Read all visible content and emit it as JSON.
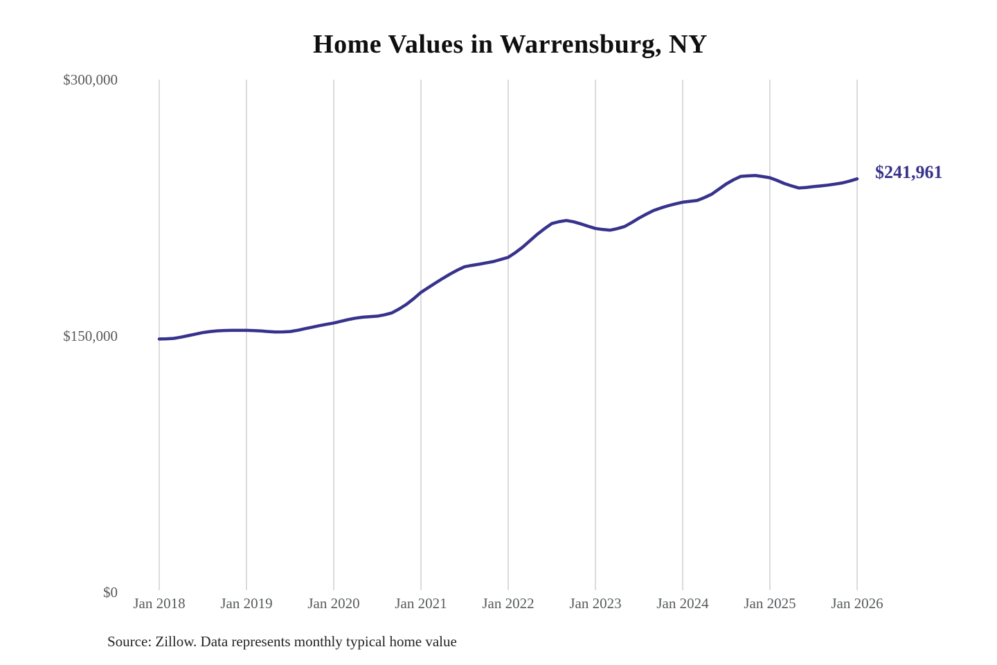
{
  "page": {
    "background": "#ffffff"
  },
  "chart": {
    "title": "Home Values in Warrensburg, NY",
    "end_label": "$241,961",
    "source": "Source: Zillow. Data represents monthly typical home value"
  },
  "chart_data": {
    "type": "line",
    "title": "Home Values in Warrensburg, NY",
    "xlabel": "",
    "ylabel": "",
    "ylim": [
      0,
      300000
    ],
    "grid": "vertical-only",
    "x_frequency": "monthly",
    "x_start": "Jan 2018",
    "x_end": "Jan 2026",
    "x_tick_labels": [
      "Jan 2018",
      "Jan 2019",
      "Jan 2020",
      "Jan 2021",
      "Jan 2022",
      "Jan 2023",
      "Jan 2024",
      "Jan 2025",
      "Jan 2026"
    ],
    "y_ticks": [
      {
        "label": "$0",
        "value": 0
      },
      {
        "label": "$150,000",
        "value": 150000
      },
      {
        "label": "$300,000",
        "value": 300000
      }
    ],
    "final_value": 241961,
    "end_value_label": "$241,961",
    "colors": {
      "line": "#37328c",
      "gridline": "#cfcfcf",
      "axis_text": "#56595b",
      "title_text": "#0f0f0f",
      "source_text": "#222222"
    },
    "series": [
      {
        "name": "Monthly typical home value",
        "color": "#37328c",
        "values": [
          148200,
          148350,
          148600,
          149300,
          150200,
          151100,
          152000,
          152600,
          153000,
          153200,
          153300,
          153300,
          153300,
          153150,
          152900,
          152600,
          152300,
          152400,
          152600,
          153300,
          154200,
          155100,
          156000,
          156800,
          157600,
          158600,
          159600,
          160400,
          161000,
          161300,
          161600,
          162400,
          163500,
          165800,
          168500,
          171800,
          175500,
          178300,
          181000,
          183700,
          186200,
          188500,
          190500,
          191300,
          192000,
          192800,
          193600,
          194800,
          196000,
          198800,
          202000,
          205800,
          209500,
          212800,
          215800,
          216900,
          217600,
          216800,
          215600,
          214200,
          212900,
          212300,
          211900,
          212800,
          214000,
          216400,
          219000,
          221300,
          223400,
          224900,
          226200,
          227300,
          228300,
          228800,
          229300,
          231000,
          233000,
          236000,
          239000,
          241400,
          243400,
          243700,
          243900,
          243300,
          242600,
          241000,
          239200,
          237800,
          236600,
          236900,
          237400,
          237800,
          238300,
          238900,
          239600,
          240700,
          241961
        ]
      }
    ]
  }
}
